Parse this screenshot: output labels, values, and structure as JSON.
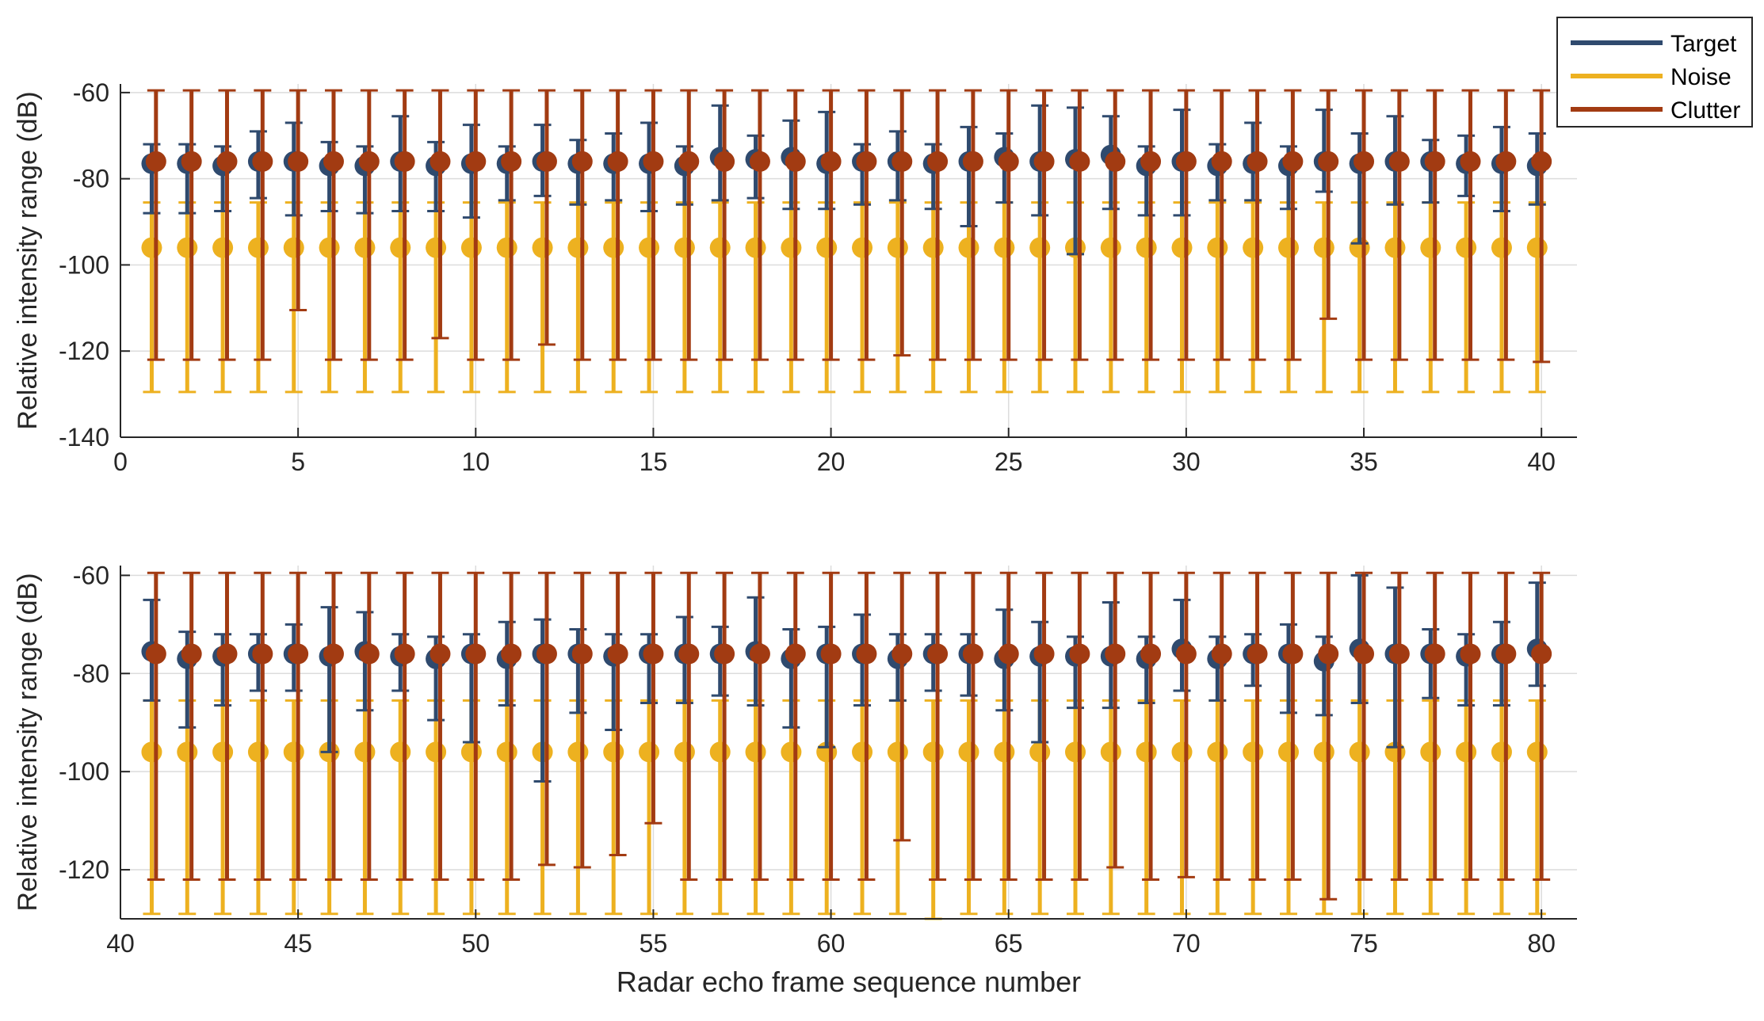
{
  "chart_data": [
    {
      "type": "errorbar",
      "xlabel": "",
      "ylabel": "Relative intensity range (dB)",
      "xlim": [
        0,
        41
      ],
      "ylim": [
        -140,
        -58
      ],
      "xticks": [
        0,
        5,
        10,
        15,
        20,
        25,
        30,
        35,
        40
      ],
      "yticks": [
        -140,
        -120,
        -100,
        -80,
        -60
      ],
      "grid": true,
      "series": [
        {
          "name": "Target",
          "color": "#2f4a6e",
          "x": [
            1,
            2,
            3,
            4,
            5,
            6,
            7,
            8,
            9,
            10,
            11,
            12,
            13,
            14,
            15,
            16,
            17,
            18,
            19,
            20,
            21,
            22,
            23,
            24,
            25,
            26,
            27,
            28,
            29,
            30,
            31,
            32,
            33,
            34,
            35,
            36,
            37,
            38,
            39,
            40
          ],
          "mean": [
            -76.5,
            -76.5,
            -77,
            -76,
            -76,
            -77,
            -77,
            -76,
            -77,
            -76.5,
            -76.5,
            -76,
            -76.5,
            -76.5,
            -76.5,
            -77,
            -75,
            -75.5,
            -75,
            -76.5,
            -76,
            -76,
            -76.5,
            -76,
            -75,
            -76,
            -75.5,
            -74.5,
            -77,
            -76,
            -77,
            -76.5,
            -77,
            -76,
            -76.5,
            -76,
            -76,
            -76.5,
            -76.5,
            -77
          ],
          "upper": [
            -72,
            -72,
            -72.5,
            -69,
            -67,
            -71.5,
            -72.5,
            -65.5,
            -71.5,
            -67.5,
            -72.5,
            -67.5,
            -71,
            -69.5,
            -67,
            -72.5,
            -63,
            -70,
            -66.5,
            -64.5,
            -72,
            -69,
            -72,
            -68,
            -69.5,
            -63,
            -63.5,
            -65.5,
            -72.5,
            -64,
            -72,
            -67,
            -72.5,
            -64,
            -69.5,
            -65.5,
            -71,
            -70,
            -68,
            -69.5
          ],
          "lower": [
            -88,
            -88,
            -87.5,
            -84.5,
            -88.5,
            -87.5,
            -88,
            -87.5,
            -87.5,
            -89,
            -85,
            -84,
            -86,
            -85,
            -87.5,
            -86,
            -85,
            -84.5,
            -87,
            -87,
            -86,
            -85,
            -87,
            -91,
            -85.5,
            -88.5,
            -97.5,
            -87,
            -88.5,
            -88.5,
            -85,
            -85,
            -87,
            -83,
            -95,
            -86,
            -85.5,
            -84,
            -87.5,
            -86
          ]
        },
        {
          "name": "Noise",
          "color": "#edb120",
          "x": [
            1,
            2,
            3,
            4,
            5,
            6,
            7,
            8,
            9,
            10,
            11,
            12,
            13,
            14,
            15,
            16,
            17,
            18,
            19,
            20,
            21,
            22,
            23,
            24,
            25,
            26,
            27,
            28,
            29,
            30,
            31,
            32,
            33,
            34,
            35,
            36,
            37,
            38,
            39,
            40
          ],
          "mean": [
            -96,
            -96,
            -96,
            -96,
            -96,
            -96,
            -96,
            -96,
            -96,
            -96,
            -96,
            -96,
            -96,
            -96,
            -96,
            -96,
            -96,
            -96,
            -96,
            -96,
            -96,
            -96,
            -96,
            -96,
            -96,
            -96,
            -96,
            -96,
            -96,
            -96,
            -96,
            -96,
            -96,
            -96,
            -96,
            -96,
            -96,
            -96,
            -96,
            -96
          ],
          "upper": [
            -85.5,
            -85.5,
            -85.5,
            -85.5,
            -85.5,
            -85.5,
            -85.5,
            -85.5,
            -85.5,
            -85.5,
            -85.5,
            -85.5,
            -85.5,
            -85.5,
            -85.5,
            -85.5,
            -85.5,
            -85.5,
            -85.5,
            -85.5,
            -85.5,
            -85.5,
            -85.5,
            -85.5,
            -85.5,
            -85.5,
            -85.5,
            -85.5,
            -85.5,
            -85.5,
            -85.5,
            -85.5,
            -85.5,
            -85.5,
            -85.5,
            -85.5,
            -85.5,
            -85.5,
            -85.5,
            -85.5
          ],
          "lower": [
            -129.5,
            -129.5,
            -129.5,
            -129.5,
            -129.5,
            -129.5,
            -129.5,
            -129.5,
            -129.5,
            -129.5,
            -129.5,
            -129.5,
            -129.5,
            -129.5,
            -129.5,
            -129.5,
            -129.5,
            -129.5,
            -129.5,
            -129.5,
            -129.5,
            -129.5,
            -129.5,
            -129.5,
            -129.5,
            -129.5,
            -129.5,
            -129.5,
            -129.5,
            -129.5,
            -129.5,
            -129.5,
            -129.5,
            -129.5,
            -129.5,
            -129.5,
            -129.5,
            -129.5,
            -129.5,
            -129.5
          ]
        },
        {
          "name": "Clutter",
          "color": "#a23b12",
          "x": [
            1,
            2,
            3,
            4,
            5,
            6,
            7,
            8,
            9,
            10,
            11,
            12,
            13,
            14,
            15,
            16,
            17,
            18,
            19,
            20,
            21,
            22,
            23,
            24,
            25,
            26,
            27,
            28,
            29,
            30,
            31,
            32,
            33,
            34,
            35,
            36,
            37,
            38,
            39,
            40
          ],
          "mean": [
            -76,
            -76,
            -76,
            -76,
            -76,
            -76,
            -76,
            -76,
            -76,
            -76,
            -76,
            -76,
            -76,
            -76,
            -76,
            -76,
            -76,
            -76,
            -76,
            -76,
            -76,
            -76,
            -76,
            -76,
            -76,
            -76,
            -76,
            -76,
            -76,
            -76,
            -76,
            -76,
            -76,
            -76,
            -76,
            -76,
            -76,
            -76,
            -76,
            -76
          ],
          "upper": [
            -59.5,
            -59.5,
            -59.5,
            -59.5,
            -59.5,
            -59.5,
            -59.5,
            -59.5,
            -59.5,
            -59.5,
            -59.5,
            -59.5,
            -59.5,
            -59.5,
            -59.5,
            -59.5,
            -59.5,
            -59.5,
            -59.5,
            -59.5,
            -59.5,
            -59.5,
            -59.5,
            -59.5,
            -59.5,
            -59.5,
            -59.5,
            -59.5,
            -59.5,
            -59.5,
            -59.5,
            -59.5,
            -59.5,
            -59.5,
            -59.5,
            -59.5,
            -59.5,
            -59.5,
            -59.5,
            -59.5
          ],
          "lower": [
            -122,
            -122,
            -122,
            -122,
            -110.5,
            -122,
            -122,
            -122,
            -117,
            -122,
            -122,
            -118.5,
            -122,
            -122,
            -122,
            -122,
            -122,
            -122,
            -122,
            -122,
            -122,
            -121,
            -122,
            -122,
            -122,
            -122,
            -122,
            -122,
            -122,
            -122,
            -122,
            -122,
            -122,
            -112.5,
            -122,
            -122,
            -122,
            -122,
            -122,
            -122.5
          ]
        }
      ]
    },
    {
      "type": "errorbar",
      "xlabel": "Radar echo frame sequence number",
      "ylabel": "Relative intensity range (dB)",
      "xlim": [
        40,
        81
      ],
      "ylim": [
        -130,
        -58
      ],
      "xticks": [
        40,
        45,
        50,
        55,
        60,
        65,
        70,
        75,
        80
      ],
      "yticks": [
        -120,
        -100,
        -80,
        -60
      ],
      "grid": true,
      "series": [
        {
          "name": "Target",
          "color": "#2f4a6e",
          "x": [
            41,
            42,
            43,
            44,
            45,
            46,
            47,
            48,
            49,
            50,
            51,
            52,
            53,
            54,
            55,
            56,
            57,
            58,
            59,
            60,
            61,
            62,
            63,
            64,
            65,
            66,
            67,
            68,
            69,
            70,
            71,
            72,
            73,
            74,
            75,
            76,
            77,
            78,
            79,
            80
          ],
          "mean": [
            -75.5,
            -77,
            -76.5,
            -76,
            -76,
            -76.5,
            -75.5,
            -76.5,
            -77,
            -76,
            -77,
            -76,
            -76,
            -76.5,
            -76,
            -76,
            -76,
            -75.5,
            -77,
            -76,
            -76,
            -77,
            -76,
            -76,
            -77,
            -76.5,
            -76.5,
            -76.5,
            -77,
            -75,
            -77,
            -76,
            -76,
            -77.5,
            -75,
            -76,
            -76,
            -76.5,
            -76,
            -75
          ],
          "upper": [
            -65,
            -71.5,
            -72,
            -72,
            -70,
            -66.5,
            -67.5,
            -72,
            -72.5,
            -72,
            -69.5,
            -69,
            -71,
            -72,
            -72,
            -68.5,
            -70.5,
            -64.5,
            -71,
            -70.5,
            -68,
            -72,
            -72,
            -72,
            -67,
            -69.5,
            -72.5,
            -65.5,
            -72.5,
            -65,
            -72.5,
            -72,
            -70,
            -72.5,
            -60,
            -62.5,
            -71,
            -72,
            -69.5,
            -61.5
          ],
          "lower": [
            -85.5,
            -91,
            -86.5,
            -83.5,
            -83.5,
            -96,
            -87.5,
            -83.5,
            -89.5,
            -94,
            -86.5,
            -102,
            -88,
            -91.5,
            -86,
            -86,
            -84.5,
            -86.5,
            -91,
            -95,
            -86.5,
            -85.5,
            -83.5,
            -84.5,
            -87.5,
            -94,
            -87,
            -87,
            -86,
            -83.5,
            -85.5,
            -82.5,
            -88,
            -88.5,
            -86,
            -95,
            -85,
            -86.5,
            -86.5,
            -82.5
          ]
        },
        {
          "name": "Noise",
          "color": "#edb120",
          "x": [
            41,
            42,
            43,
            44,
            45,
            46,
            47,
            48,
            49,
            50,
            51,
            52,
            53,
            54,
            55,
            56,
            57,
            58,
            59,
            60,
            61,
            62,
            63,
            64,
            65,
            66,
            67,
            68,
            69,
            70,
            71,
            72,
            73,
            74,
            75,
            76,
            77,
            78,
            79,
            80
          ],
          "mean": [
            -96,
            -96,
            -96,
            -96,
            -96,
            -96,
            -96,
            -96,
            -96,
            -96,
            -96,
            -96,
            -96,
            -96,
            -96,
            -96,
            -96,
            -96,
            -96,
            -96,
            -96,
            -96,
            -96,
            -96,
            -96,
            -96,
            -96,
            -96,
            -96,
            -96,
            -96,
            -96,
            -96,
            -96,
            -96,
            -96,
            -96,
            -96,
            -96,
            -96
          ],
          "upper": [
            -85.5,
            -85.5,
            -85.5,
            -85.5,
            -85.5,
            -85.5,
            -85.5,
            -85.5,
            -85.5,
            -85.5,
            -85.5,
            -85.5,
            -85.5,
            -85.5,
            -85.5,
            -85.5,
            -85.5,
            -85.5,
            -85.5,
            -85.5,
            -85.5,
            -85.5,
            -85.5,
            -85.5,
            -85.5,
            -85.5,
            -85.5,
            -85.5,
            -85.5,
            -85.5,
            -85.5,
            -85.5,
            -85.5,
            -85.5,
            -85.5,
            -85.5,
            -85.5,
            -85.5,
            -85.5,
            -85.5
          ],
          "lower": [
            -129,
            -129,
            -129,
            -129,
            -129,
            -129,
            -129,
            -129,
            -129,
            -129,
            -129,
            -129,
            -129,
            -129,
            -129,
            -129,
            -129,
            -129,
            -129,
            -129,
            -129,
            -129,
            -130,
            -129,
            -129,
            -129,
            -129,
            -129,
            -129,
            -129,
            -129,
            -129,
            -129,
            -129,
            -129,
            -129,
            -129,
            -129,
            -129,
            -129
          ]
        },
        {
          "name": "Clutter",
          "color": "#a23b12",
          "x": [
            41,
            42,
            43,
            44,
            45,
            46,
            47,
            48,
            49,
            50,
            51,
            52,
            53,
            54,
            55,
            56,
            57,
            58,
            59,
            60,
            61,
            62,
            63,
            64,
            65,
            66,
            67,
            68,
            69,
            70,
            71,
            72,
            73,
            74,
            75,
            76,
            77,
            78,
            79,
            80
          ],
          "mean": [
            -76,
            -76,
            -76,
            -76,
            -76,
            -76,
            -76,
            -76,
            -76,
            -76,
            -76,
            -76,
            -76,
            -76,
            -76,
            -76,
            -76,
            -76,
            -76,
            -76,
            -76,
            -76,
            -76,
            -76,
            -76,
            -76,
            -76,
            -76,
            -76,
            -76,
            -76,
            -76,
            -76,
            -76,
            -76,
            -76,
            -76,
            -76,
            -76,
            -76
          ],
          "upper": [
            -59.5,
            -59.5,
            -59.5,
            -59.5,
            -59.5,
            -59.5,
            -59.5,
            -59.5,
            -59.5,
            -59.5,
            -59.5,
            -59.5,
            -59.5,
            -59.5,
            -59.5,
            -59.5,
            -59.5,
            -59.5,
            -59.5,
            -59.5,
            -59.5,
            -59.5,
            -59.5,
            -59.5,
            -59.5,
            -59.5,
            -59.5,
            -59.5,
            -59.5,
            -59.5,
            -59.5,
            -59.5,
            -59.5,
            -59.5,
            -59.5,
            -59.5,
            -59.5,
            -59.5,
            -59.5,
            -59.5
          ],
          "lower": [
            -122,
            -122,
            -122,
            -122,
            -122,
            -122,
            -122,
            -122,
            -122,
            -122,
            -122,
            -119,
            -119.5,
            -117,
            -110.5,
            -122,
            -122,
            -122,
            -122,
            -122,
            -122,
            -114,
            -122,
            -122,
            -122,
            -122,
            -122,
            -119.5,
            -122,
            -121.5,
            -122,
            -122,
            -122,
            -126,
            -122,
            -122,
            -122,
            -122,
            -122,
            -122
          ]
        }
      ]
    }
  ],
  "legend": {
    "position": "top-right",
    "entries": [
      {
        "label": "Target",
        "color": "#2f4a6e"
      },
      {
        "label": "Noise",
        "color": "#edb120"
      },
      {
        "label": "Clutter",
        "color": "#a23b12"
      }
    ]
  }
}
